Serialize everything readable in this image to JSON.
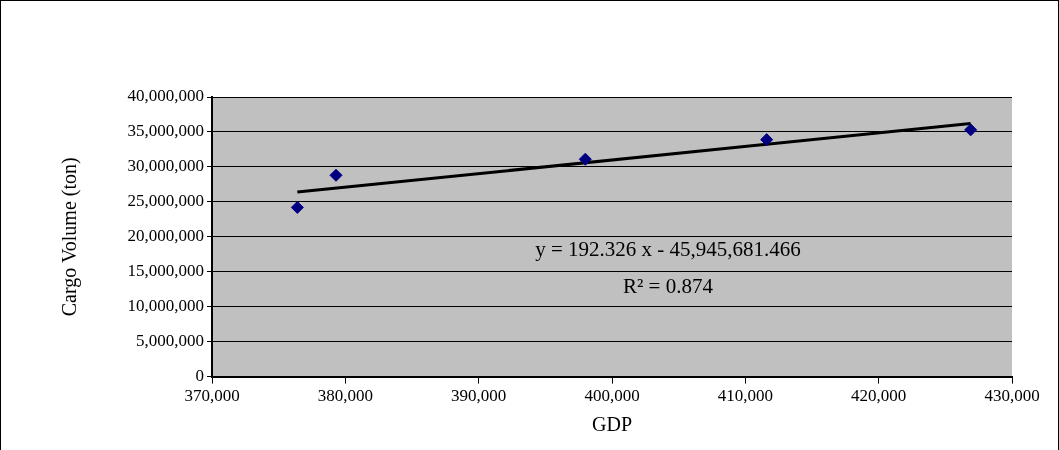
{
  "chart_data": {
    "type": "scatter",
    "xlabel": "GDP",
    "ylabel": "Cargo Volume (ton)",
    "series": [
      {
        "color": "#000080",
        "marker": "diamond",
        "x": [
          376400,
          379300,
          398000,
          411600,
          426900
        ],
        "values": [
          24200000,
          28800000,
          31100000,
          33900000,
          35300000
        ]
      },
      {
        "type": "line",
        "color": "#000000",
        "x": [
          376400,
          426900
        ],
        "values": [
          26400000,
          36200000
        ]
      }
    ],
    "xlim": [
      370000,
      430000
    ],
    "xticks": [
      {
        "value": 370000,
        "label": "370,000"
      },
      {
        "value": 380000,
        "label": "380,000"
      },
      {
        "value": 390000,
        "label": "390,000"
      },
      {
        "value": 400000,
        "label": "400,000"
      },
      {
        "value": 410000,
        "label": "410,000"
      },
      {
        "value": 420000,
        "label": "420,000"
      },
      {
        "value": 430000,
        "label": "430,000"
      }
    ],
    "ylim": [
      0,
      40000000
    ],
    "yticks": [
      0,
      {
        "value": 5000000,
        "label": "5,000,000"
      },
      {
        "value": 10000000,
        "label": "10,000,000"
      },
      {
        "value": 15000000,
        "label": "15,000,000"
      },
      {
        "value": 20000000,
        "label": "20,000,000"
      },
      {
        "value": 25000000,
        "label": "25,000,000"
      },
      {
        "value": 30000000,
        "label": "30,000,000"
      },
      {
        "value": 35000000,
        "label": "35,000,000"
      },
      {
        "value": 40000000,
        "label": "40,000,000"
      }
    ],
    "annotations": [
      "y = 192.326 x - 45,945,681.466",
      "R² = 0.874"
    ],
    "grid": "y",
    "legend": false
  }
}
